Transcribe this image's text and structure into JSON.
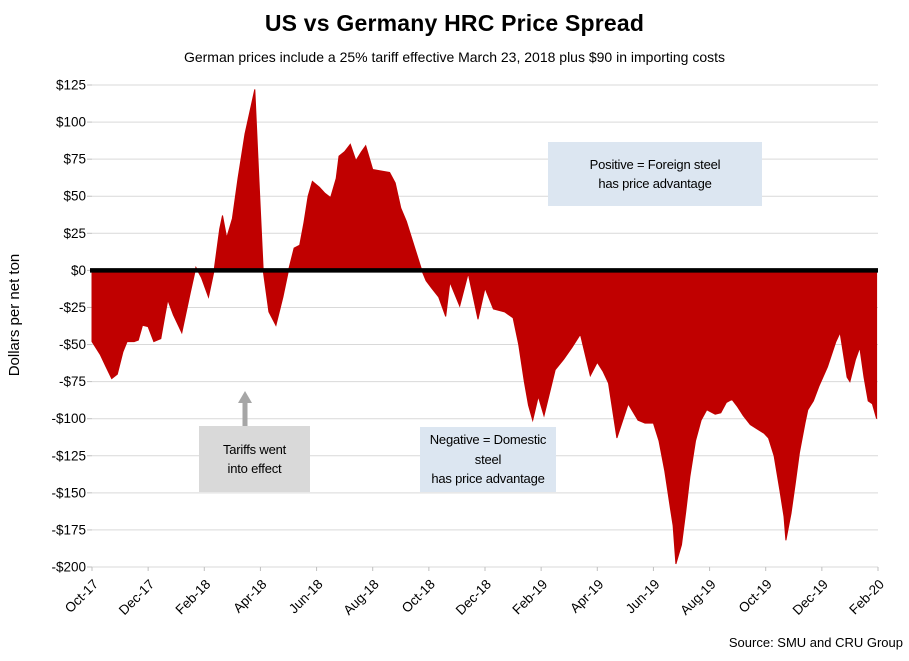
{
  "page": {
    "title": "US vs Germany HRC Price Spread",
    "subtitle": "German prices include a 25% tariff effective March 23, 2018 plus $90 in importing costs",
    "source": "Source: SMU and CRU Group"
  },
  "annotations": {
    "positive_note": "Positive = Foreign steel\nhas price advantage",
    "tariff_note": "Tariffs went\ninto effect",
    "negative_note": "Negative = Domestic steel\nhas price advantage"
  },
  "colors": {
    "area": "#c00000",
    "zero_line": "#000000",
    "gridline": "#d9d9d9",
    "tick": "#bfbfbf",
    "note_blue_bg": "#dce6f1",
    "note_gray_bg": "#d9d9d9",
    "arrow_gray": "#a6a6a6",
    "text": "#000000"
  },
  "chart_data": {
    "type": "area",
    "title": "US vs Germany HRC Price Spread",
    "subtitle": "German prices include a 25% tariff effective March 23, 2018 plus $90 in importing costs",
    "xlabel": "",
    "ylabel": "Dollars per net ton",
    "x_unit": "months since Oct-2017, weekly data",
    "xlim": [
      0,
      28
    ],
    "ylim": [
      -200,
      125
    ],
    "grid": "horizontal",
    "zero_baseline": true,
    "legend": "none",
    "x_tick_labels": [
      "Oct-17",
      "Dec-17",
      "Feb-18",
      "Apr-18",
      "Jun-18",
      "Aug-18",
      "Oct-18",
      "Dec-18",
      "Feb-19",
      "Apr-19",
      "Jun-19",
      "Aug-19",
      "Oct-19",
      "Dec-19",
      "Feb-20"
    ],
    "x_tick_positions": [
      0,
      2,
      4,
      6,
      8,
      10,
      12,
      14,
      16,
      18,
      20,
      22,
      24,
      26,
      28
    ],
    "y_tick_labels": [
      "$125",
      "$100",
      "$75",
      "$50",
      "$25",
      "$0",
      "-$25",
      "-$50",
      "-$75",
      "-$100",
      "-$125",
      "-$150",
      "-$175",
      "-$200"
    ],
    "y_tick_values": [
      125,
      100,
      75,
      50,
      25,
      0,
      -25,
      -50,
      -75,
      -100,
      -125,
      -150,
      -175,
      -200
    ],
    "series": [
      {
        "name": "US minus Germany HRC price spread ($ per net ton)",
        "points": [
          [
            0,
            -48
          ],
          [
            0.3,
            -57
          ],
          [
            0.5,
            -65
          ],
          [
            0.7,
            -73
          ],
          [
            0.9,
            -70
          ],
          [
            1.1,
            -55
          ],
          [
            1.25,
            -48
          ],
          [
            1.5,
            -48
          ],
          [
            1.65,
            -47
          ],
          [
            1.8,
            -37
          ],
          [
            2.0,
            -38
          ],
          [
            2.2,
            -48
          ],
          [
            2.45,
            -46
          ],
          [
            2.6,
            -30
          ],
          [
            2.7,
            -20
          ],
          [
            2.9,
            -30
          ],
          [
            3.2,
            -42
          ],
          [
            3.5,
            -15
          ],
          [
            3.7,
            2
          ],
          [
            3.9,
            -5
          ],
          [
            4.15,
            -18
          ],
          [
            4.35,
            0
          ],
          [
            4.55,
            28
          ],
          [
            4.65,
            37
          ],
          [
            4.8,
            22
          ],
          [
            5.0,
            35
          ],
          [
            5.2,
            62
          ],
          [
            5.45,
            92
          ],
          [
            5.8,
            122
          ],
          [
            5.95,
            60
          ],
          [
            6.1,
            0
          ],
          [
            6.3,
            -28
          ],
          [
            6.55,
            -37
          ],
          [
            6.8,
            -18
          ],
          [
            7.0,
            0
          ],
          [
            7.2,
            15
          ],
          [
            7.4,
            17
          ],
          [
            7.55,
            32
          ],
          [
            7.7,
            50
          ],
          [
            7.85,
            60
          ],
          [
            8.1,
            56
          ],
          [
            8.3,
            52
          ],
          [
            8.5,
            49
          ],
          [
            8.7,
            62
          ],
          [
            8.8,
            77
          ],
          [
            9.0,
            80
          ],
          [
            9.2,
            85
          ],
          [
            9.4,
            74
          ],
          [
            9.6,
            80
          ],
          [
            9.75,
            84
          ],
          [
            10.0,
            68
          ],
          [
            10.3,
            67
          ],
          [
            10.6,
            66
          ],
          [
            10.8,
            59
          ],
          [
            11.0,
            42
          ],
          [
            11.2,
            33
          ],
          [
            11.35,
            24
          ],
          [
            11.5,
            15
          ],
          [
            11.75,
            0
          ],
          [
            11.9,
            -7
          ],
          [
            12.1,
            -12
          ],
          [
            12.35,
            -18
          ],
          [
            12.6,
            -31
          ],
          [
            12.75,
            -8
          ],
          [
            13.1,
            -24
          ],
          [
            13.4,
            -2
          ],
          [
            13.75,
            -33
          ],
          [
            14.0,
            -12
          ],
          [
            14.3,
            -26
          ],
          [
            14.7,
            -28
          ],
          [
            15.0,
            -32
          ],
          [
            15.2,
            -50
          ],
          [
            15.4,
            -75
          ],
          [
            15.55,
            -91
          ],
          [
            15.7,
            -101
          ],
          [
            15.9,
            -85
          ],
          [
            16.1,
            -98
          ],
          [
            16.5,
            -67
          ],
          [
            16.8,
            -60
          ],
          [
            17.1,
            -52
          ],
          [
            17.4,
            -43
          ],
          [
            17.75,
            -71
          ],
          [
            18.0,
            -62
          ],
          [
            18.2,
            -68
          ],
          [
            18.4,
            -76
          ],
          [
            18.7,
            -113
          ],
          [
            19.1,
            -90
          ],
          [
            19.45,
            -101
          ],
          [
            19.7,
            -103
          ],
          [
            20.0,
            -103
          ],
          [
            20.2,
            -115
          ],
          [
            20.4,
            -135
          ],
          [
            20.6,
            -160
          ],
          [
            20.7,
            -172
          ],
          [
            20.8,
            -198
          ],
          [
            21.0,
            -185
          ],
          [
            21.15,
            -163
          ],
          [
            21.3,
            -139
          ],
          [
            21.5,
            -115
          ],
          [
            21.7,
            -101
          ],
          [
            21.9,
            -94
          ],
          [
            22.2,
            -97
          ],
          [
            22.4,
            -96
          ],
          [
            22.6,
            -89
          ],
          [
            22.8,
            -87
          ],
          [
            23.0,
            -92
          ],
          [
            23.2,
            -98
          ],
          [
            23.45,
            -104
          ],
          [
            23.7,
            -107
          ],
          [
            23.95,
            -110
          ],
          [
            24.1,
            -113
          ],
          [
            24.3,
            -125
          ],
          [
            24.5,
            -148
          ],
          [
            24.65,
            -166
          ],
          [
            24.72,
            -182
          ],
          [
            24.9,
            -164
          ],
          [
            25.05,
            -144
          ],
          [
            25.2,
            -123
          ],
          [
            25.4,
            -103
          ],
          [
            25.5,
            -94
          ],
          [
            25.7,
            -88
          ],
          [
            25.9,
            -78
          ],
          [
            26.2,
            -65
          ],
          [
            26.5,
            -48
          ],
          [
            26.65,
            -42
          ],
          [
            26.9,
            -72
          ],
          [
            27.0,
            -75
          ],
          [
            27.2,
            -60
          ],
          [
            27.35,
            -52
          ],
          [
            27.5,
            -72
          ],
          [
            27.65,
            -88
          ],
          [
            27.8,
            -90
          ],
          [
            27.95,
            -100
          ]
        ]
      }
    ],
    "annotations": [
      {
        "text": "Positive = Foreign steel has price advantage",
        "style": "blue-box"
      },
      {
        "text": "Negative = Domestic steel has price advantage",
        "style": "blue-box"
      },
      {
        "text": "Tariffs went into effect",
        "style": "gray-box-with-up-arrow",
        "arrow_points_to_month": 5.7
      }
    ],
    "source": "Source: SMU and CRU Group"
  }
}
